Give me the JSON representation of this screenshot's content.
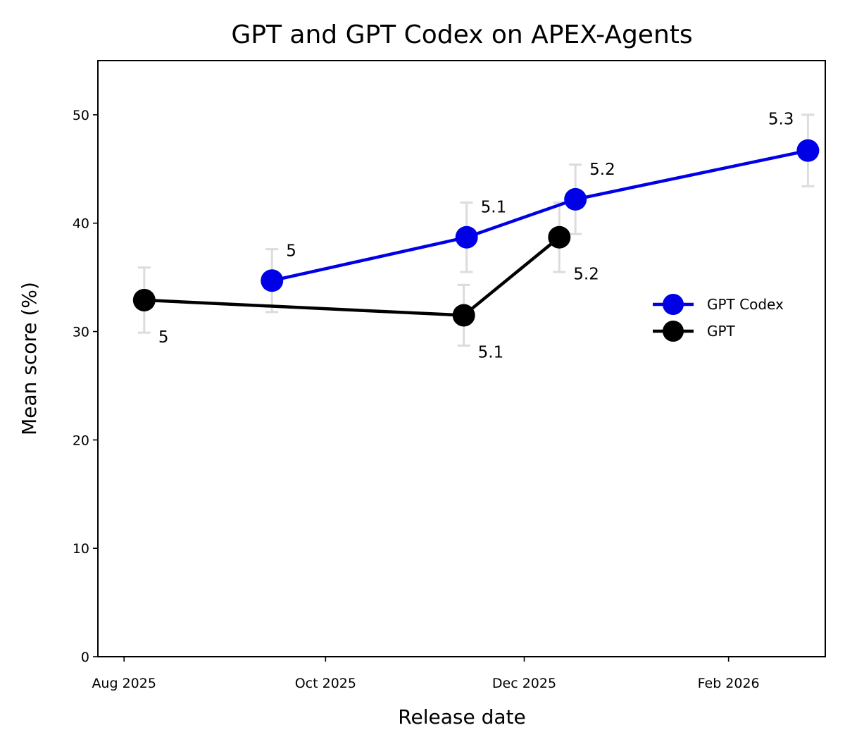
{
  "chart_data": {
    "type": "line",
    "title": "GPT and GPT Codex on APEX-Agents",
    "xlabel": "Release date",
    "ylabel": "Mean score (%)",
    "ylim": [
      0,
      55
    ],
    "xlim": [
      -0.65,
      17.4
    ],
    "yticks": [
      0,
      10,
      20,
      30,
      40,
      50
    ],
    "xticks": [
      {
        "label": "Aug 2025",
        "value": 0
      },
      {
        "label": "Oct 2025",
        "value": 5
      },
      {
        "label": "Dec 2025",
        "value": 9.93
      },
      {
        "label": "Feb 2026",
        "value": 15
      }
    ],
    "grid": false,
    "legend_position": "right",
    "series": [
      {
        "name": "GPT Codex",
        "color": "#0000e6",
        "points": [
          {
            "x": 3.67,
            "y": 34.7,
            "err_low": 31.8,
            "err_high": 37.6,
            "label": "5",
            "label_pos": "above-right"
          },
          {
            "x": 8.5,
            "y": 38.7,
            "err_low": 35.5,
            "err_high": 41.9,
            "label": "5.1",
            "label_pos": "above-right"
          },
          {
            "x": 11.2,
            "y": 42.2,
            "err_low": 39.0,
            "err_high": 45.4,
            "label": "5.2",
            "label_pos": "above-right"
          },
          {
            "x": 16.97,
            "y": 46.7,
            "err_low": 43.4,
            "err_high": 50.0,
            "label": "5.3",
            "label_pos": "above-left"
          }
        ]
      },
      {
        "name": "GPT",
        "color": "#000000",
        "points": [
          {
            "x": 0.5,
            "y": 32.9,
            "err_low": 29.9,
            "err_high": 35.9,
            "label": "5",
            "label_pos": "below-right"
          },
          {
            "x": 8.43,
            "y": 31.5,
            "err_low": 28.7,
            "err_high": 34.3,
            "label": "5.1",
            "label_pos": "below-right"
          },
          {
            "x": 10.8,
            "y": 38.7,
            "err_low": 35.5,
            "err_high": 41.9,
            "label": "5.2",
            "label_pos": "below-right"
          }
        ]
      }
    ]
  },
  "colors": {
    "errorbar": "#dcdcdc",
    "axis": "#000000",
    "background": "#ffffff"
  }
}
